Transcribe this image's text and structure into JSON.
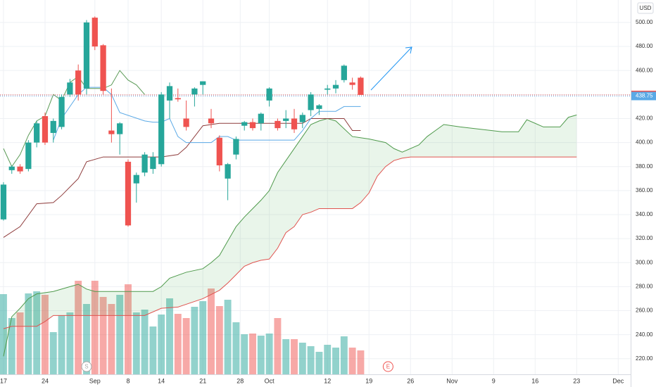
{
  "chart_data": {
    "type": "candlestick",
    "currency": "USD",
    "xlim": [
      -0.42,
      75.5
    ],
    "ylim": [
      207,
      518.7
    ],
    "xticks": [
      {
        "value": 0,
        "label": "17"
      },
      {
        "value": 5,
        "label": "24"
      },
      {
        "value": 11,
        "label": "Sep"
      },
      {
        "value": 15,
        "label": "8"
      },
      {
        "value": 19,
        "label": "14"
      },
      {
        "value": 24,
        "label": "21"
      },
      {
        "value": 28.5,
        "label": "28"
      },
      {
        "value": 32,
        "label": "Oct"
      },
      {
        "value": 39,
        "label": "12"
      },
      {
        "value": 44,
        "label": "19"
      },
      {
        "value": 49,
        "label": "26"
      },
      {
        "value": 54,
        "label": "Nov"
      },
      {
        "value": 59,
        "label": "9"
      },
      {
        "value": 64,
        "label": "16"
      },
      {
        "value": 69,
        "label": "23"
      },
      {
        "value": 74,
        "label": "Dec"
      }
    ],
    "yticks": [
      {
        "value": 220,
        "label": "220.00"
      },
      {
        "value": 240,
        "label": "240.00"
      },
      {
        "value": 260,
        "label": "260.00"
      },
      {
        "value": 280,
        "label": "280.00"
      },
      {
        "value": 300,
        "label": "300.00"
      },
      {
        "value": 320,
        "label": "320.00"
      },
      {
        "value": 340,
        "label": "340.00"
      },
      {
        "value": 360,
        "label": "360.00"
      },
      {
        "value": 380,
        "label": "380.00"
      },
      {
        "value": 400,
        "label": "400.00"
      },
      {
        "value": 420,
        "label": "420.00"
      },
      {
        "value": 440,
        "label": "440.00"
      },
      {
        "value": 460,
        "label": "460.00"
      },
      {
        "value": 480,
        "label": "480.00"
      },
      {
        "value": 500,
        "label": "500.00"
      }
    ],
    "grid": true,
    "up_color": "#26a69a",
    "down_color": "#ef5350",
    "x": [
      0,
      1,
      2,
      3,
      4,
      5,
      6,
      7,
      8,
      9,
      10,
      11,
      12,
      13,
      14,
      15,
      16,
      17,
      18,
      19,
      20,
      21,
      22,
      23,
      24,
      25,
      26,
      27,
      28,
      29,
      30,
      31,
      32,
      33,
      34,
      35,
      36,
      37,
      38,
      39,
      40,
      41,
      42,
      43
    ],
    "open": [
      336,
      377,
      380,
      378,
      400,
      422,
      408,
      413,
      440,
      460,
      445,
      504,
      481,
      410,
      407,
      384,
      366,
      375,
      378,
      382,
      435,
      437,
      420,
      440,
      448,
      420,
      404,
      370,
      390,
      414,
      417,
      416,
      435,
      418,
      418,
      420,
      417,
      427,
      428,
      444,
      445,
      452,
      450,
      454
    ],
    "high": [
      367,
      381,
      382,
      402,
      418,
      425,
      420,
      440,
      453,
      465,
      502,
      505,
      482,
      445,
      417,
      386,
      375,
      392,
      392,
      442,
      450,
      445,
      435,
      446,
      451,
      428,
      406,
      383,
      405,
      418,
      420,
      425,
      446,
      420,
      427,
      428,
      425,
      442,
      432,
      448,
      452,
      465,
      454,
      455
    ],
    "low": [
      335,
      374,
      374,
      376,
      396,
      398,
      400,
      411,
      438,
      435,
      440,
      477,
      440,
      400,
      390,
      330,
      350,
      372,
      374,
      380,
      420,
      434,
      410,
      430,
      440,
      412,
      376,
      352,
      386,
      410,
      410,
      410,
      430,
      410,
      412,
      408,
      412,
      422,
      423,
      440,
      441,
      450,
      444,
      440
    ],
    "close": [
      365,
      380,
      376,
      400,
      416,
      400,
      418,
      438,
      450,
      440,
      500,
      480,
      443,
      407,
      416,
      331,
      373,
      390,
      388,
      440,
      447,
      436,
      413,
      445,
      451,
      416,
      381,
      382,
      403,
      417,
      412,
      424,
      445,
      412,
      420,
      411,
      423,
      440,
      431,
      445,
      448,
      464,
      448,
      439.67
    ],
    "volume": [
      57,
      40,
      44,
      57.5,
      59,
      56.5,
      30,
      42,
      44,
      66.5,
      50,
      66.5,
      55,
      50,
      56.5,
      64,
      44,
      46,
      34,
      42.5,
      54,
      43,
      40,
      48,
      52,
      61,
      48.5,
      53,
      37,
      28.5,
      29,
      27.5,
      29,
      40,
      25,
      25,
      22.5,
      20,
      16,
      21,
      19,
      27,
      19,
      17
    ],
    "volume_ylim": [
      0,
      150
    ],
    "last_price": 439.67,
    "indicator_price": 438.75,
    "conversion_line": {
      "color": "#5aa9e6",
      "x": [
        6,
        7,
        8,
        9,
        10,
        12,
        13,
        14,
        17,
        18,
        19,
        20,
        21,
        22,
        24,
        25,
        26,
        27,
        28,
        30,
        32,
        34,
        35,
        36,
        37,
        38,
        40,
        41,
        42,
        43
      ],
      "values": [
        402,
        420,
        430,
        440,
        446,
        446,
        440,
        425,
        418,
        417,
        417,
        420,
        405,
        400,
        400,
        400,
        405,
        405,
        402,
        402,
        402,
        402,
        402,
        410,
        420,
        426,
        426,
        430,
        430,
        430
      ]
    },
    "base_line": {
      "color": "#8e3b3b",
      "x": [
        0,
        2,
        4,
        6,
        7,
        9,
        10,
        12,
        19,
        21,
        22,
        24,
        26,
        35,
        36,
        37,
        41,
        42,
        43
      ],
      "values": [
        321,
        330,
        349,
        350,
        356,
        370,
        384,
        388,
        388,
        390,
        396,
        414,
        416,
        416,
        416,
        420,
        420,
        410,
        410
      ]
    },
    "lagging_span": {
      "color": "#5a9a56",
      "x": [
        0,
        1,
        2,
        3,
        4,
        5,
        6,
        7,
        8,
        9,
        10,
        11,
        12,
        13,
        14,
        15,
        16,
        17
      ],
      "values": [
        395,
        380,
        390,
        406,
        418,
        422,
        440,
        435,
        450,
        455,
        445,
        445,
        445,
        448,
        460,
        452,
        448,
        440
      ]
    },
    "leading_span_a": {
      "color": "#4f9a4c",
      "x": [
        0,
        1,
        2,
        3,
        4,
        6,
        8,
        9,
        10,
        11,
        18,
        19,
        20,
        22,
        24,
        25,
        26,
        27,
        28,
        29,
        30,
        31,
        32,
        33,
        34,
        36,
        37,
        38,
        39,
        40,
        42,
        44,
        46,
        47,
        48,
        50,
        51,
        52,
        53,
        55,
        60,
        62,
        63,
        65,
        66,
        67,
        68,
        69
      ],
      "values": [
        222,
        255,
        262,
        270,
        274,
        276,
        280,
        282,
        278,
        276,
        276,
        280,
        287,
        292,
        295,
        300,
        306,
        318,
        330,
        338,
        345,
        352,
        360,
        375,
        385,
        405,
        415,
        418,
        420,
        418,
        405,
        403,
        400,
        395,
        392,
        398,
        405,
        410,
        415,
        413,
        409,
        409,
        419,
        413,
        413,
        413,
        421,
        423
      ]
    },
    "leading_span_b": {
      "color": "#e0534f",
      "x": [
        0,
        1,
        4,
        5,
        6,
        17,
        19,
        21,
        24,
        26,
        27,
        28,
        29,
        30,
        31,
        32,
        33,
        34,
        35,
        36,
        37,
        38,
        42,
        43,
        44,
        45,
        46,
        47,
        48,
        49,
        51,
        69
      ],
      "values": [
        245,
        247,
        247,
        251,
        256,
        256,
        262,
        263,
        270,
        277,
        283,
        290,
        297,
        300,
        302,
        303,
        312,
        325,
        330,
        340,
        342,
        345,
        345,
        350,
        358,
        372,
        380,
        385,
        387,
        388,
        388,
        388
      ]
    },
    "cloud_color": "rgba(76,175,80,0.12)",
    "events": [
      {
        "x": 10,
        "label": "S",
        "color": "#aaaaaa"
      },
      {
        "x": 46.3,
        "label": "E",
        "color": "#ef5350"
      }
    ]
  }
}
